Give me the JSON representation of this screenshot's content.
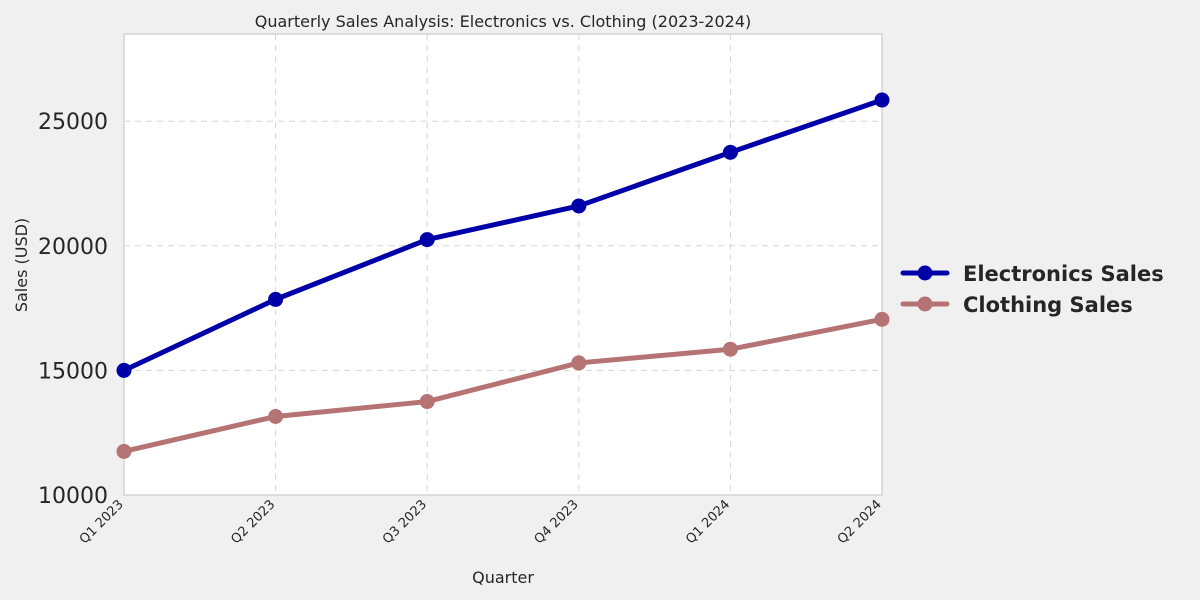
{
  "chart_data": {
    "type": "line",
    "title": "Quarterly Sales Analysis: Electronics vs. Clothing (2023-2024)",
    "xlabel": "Quarter",
    "ylabel": "Sales (USD)",
    "categories": [
      "Q1 2023",
      "Q2 2023",
      "Q3 2023",
      "Q4 2023",
      "Q1 2024",
      "Q2 2024"
    ],
    "ylim": [
      10000,
      28500
    ],
    "yticks": [
      10000,
      15000,
      20000,
      25000
    ],
    "grid": true,
    "legend_position": "right",
    "series": [
      {
        "name": "Electronics Sales",
        "color": "#0000a8",
        "values": [
          15000,
          17850,
          20250,
          21600,
          23750,
          25850
        ]
      },
      {
        "name": "Clothing Sales",
        "color": "#b57373",
        "values": [
          11750,
          13150,
          13750,
          15300,
          15850,
          17050
        ]
      }
    ]
  }
}
